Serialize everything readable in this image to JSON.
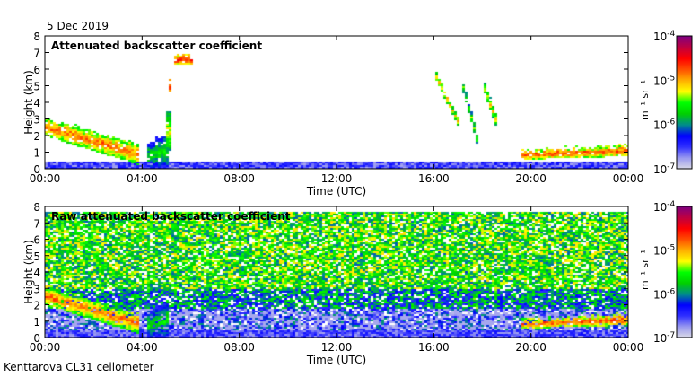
{
  "date": "5 Dec 2019",
  "footer": "Kenttarova CL31 ceilometer",
  "colormap": [
    "#dcdce6",
    "#9a9af0",
    "#3030ff",
    "#0000ff",
    "#008c8c",
    "#00d000",
    "#00ff00",
    "#ffff00",
    "#ffb000",
    "#ff5000",
    "#ff0000",
    "#c00040",
    "#800080"
  ],
  "chart_data": [
    {
      "type": "heatmap",
      "title": "Attenuated backscatter coefficient",
      "xlabel": "Time (UTC)",
      "ylabel": "Height (km)",
      "xticks": [
        "00:00",
        "04:00",
        "08:00",
        "12:00",
        "16:00",
        "20:00",
        "00:00"
      ],
      "yticks": [
        "0",
        "1",
        "2",
        "3",
        "4",
        "5",
        "6",
        "7",
        "8"
      ],
      "xlim_hours": [
        0,
        24
      ],
      "ylim_km": [
        0,
        8
      ],
      "colorbar": {
        "label": "m-1 sr-1",
        "ticks": [
          "10-7",
          "10-6",
          "10-5",
          "10-4"
        ],
        "log10_range": [
          -7,
          -4
        ]
      },
      "noise_field": false,
      "features": [
        {
          "name": "descending cloud",
          "t": [
            0,
            3.8
          ],
          "h_top": [
            3.1,
            1.5
          ],
          "h_bot": [
            2.0,
            0.3
          ],
          "log10": -4.8
        },
        {
          "name": "precip column",
          "t": [
            4.2,
            5.0
          ],
          "h_top": [
            1.6,
            2.2
          ],
          "h_bot": [
            0.1,
            0.1
          ],
          "log10": -5.6
        },
        {
          "name": "streak",
          "t": [
            4.95,
            5.1
          ],
          "h_top": [
            3.5,
            3.5
          ],
          "h_bot": [
            1.0,
            1.0
          ],
          "log10": -5.2
        },
        {
          "name": "cirrus patch",
          "t": [
            5.05,
            5.15
          ],
          "h_top": [
            5.3,
            5.3
          ],
          "h_bot": [
            4.7,
            4.7
          ],
          "log10": -4.3
        },
        {
          "name": "cirrus bits",
          "t": [
            5.3,
            6.0
          ],
          "h_top": [
            6.9,
            6.9
          ],
          "h_bot": [
            6.3,
            6.3
          ],
          "log10": -4.5
        },
        {
          "name": "virga 1",
          "t": [
            16.0,
            17.0
          ],
          "h_top": [
            6.0,
            3.0
          ],
          "h_bot": [
            5.5,
            2.5
          ],
          "log10": -5.0
        },
        {
          "name": "virga 2",
          "t": [
            17.1,
            17.8
          ],
          "h_top": [
            5.5,
            1.8
          ],
          "h_bot": [
            5.0,
            1.2
          ],
          "log10": -5.3
        },
        {
          "name": "virga 3",
          "t": [
            18.0,
            18.6
          ],
          "h_top": [
            5.4,
            3.0
          ],
          "h_bot": [
            4.8,
            2.2
          ],
          "log10": -5.1
        },
        {
          "name": "low cloud",
          "t": [
            19.5,
            24
          ],
          "h_top": [
            1.1,
            1.5
          ],
          "h_bot": [
            0.6,
            0.8
          ],
          "log10": -4.7
        }
      ]
    },
    {
      "type": "heatmap",
      "title": "Raw attenuated backscatter coefficient",
      "xlabel": "Time (UTC)",
      "ylabel": "Height (km)",
      "xticks": [
        "00:00",
        "04:00",
        "08:00",
        "12:00",
        "16:00",
        "20:00",
        "00:00"
      ],
      "yticks": [
        "0",
        "1",
        "2",
        "3",
        "4",
        "5",
        "6",
        "7",
        "8"
      ],
      "xlim_hours": [
        0,
        24
      ],
      "ylim_km": [
        0,
        8
      ],
      "colorbar": {
        "label": "m-1 sr-1",
        "ticks": [
          "10-7",
          "10-6",
          "10-5",
          "10-4"
        ],
        "log10_range": [
          -7,
          -4
        ]
      },
      "noise_field": true,
      "noise_top_km": 7.7,
      "features": [
        {
          "name": "descending cloud",
          "t": [
            0,
            3.8
          ],
          "h_top": [
            3.1,
            1.5
          ],
          "h_bot": [
            2.0,
            0.3
          ],
          "log10": -4.8
        },
        {
          "name": "precip column",
          "t": [
            4.2,
            5.0
          ],
          "h_top": [
            1.6,
            2.2
          ],
          "h_bot": [
            0.1,
            0.1
          ],
          "log10": -5.6
        },
        {
          "name": "virga 2",
          "t": [
            17.1,
            17.8
          ],
          "h_top": [
            5.5,
            1.8
          ],
          "h_bot": [
            5.0,
            1.2
          ],
          "log10": -5.3
        },
        {
          "name": "virga 3",
          "t": [
            18.0,
            18.6
          ],
          "h_top": [
            5.4,
            3.0
          ],
          "h_bot": [
            4.8,
            2.2
          ],
          "log10": -5.1
        },
        {
          "name": "low cloud",
          "t": [
            19.5,
            24
          ],
          "h_top": [
            1.1,
            1.5
          ],
          "h_bot": [
            0.6,
            0.8
          ],
          "log10": -4.7
        }
      ]
    }
  ]
}
